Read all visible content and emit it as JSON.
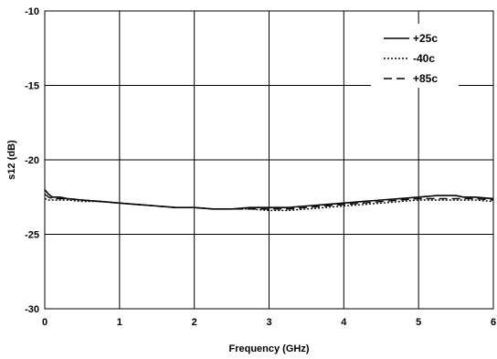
{
  "chart_data": {
    "type": "line",
    "title": "",
    "xlabel": "Frequency (GHz)",
    "ylabel": "s12 (dB)",
    "xlim": [
      0,
      6
    ],
    "ylim": [
      -30,
      -10
    ],
    "xticks": [
      0,
      1,
      2,
      3,
      4,
      5,
      6
    ],
    "yticks": [
      -30,
      -25,
      -20,
      -15,
      -10
    ],
    "grid": true,
    "legend_position": "top-right",
    "series": [
      {
        "name": "+25c",
        "style": "solid",
        "color": "#000000",
        "x": [
          0,
          0.05,
          0.1,
          0.2,
          0.3,
          0.5,
          0.75,
          1.0,
          1.25,
          1.5,
          1.75,
          2.0,
          2.25,
          2.5,
          2.75,
          3.0,
          3.25,
          3.5,
          3.75,
          4.0,
          4.25,
          4.5,
          4.75,
          5.0,
          5.25,
          5.5,
          5.6,
          5.75,
          6.0
        ],
        "y": [
          -22.0,
          -22.3,
          -22.5,
          -22.5,
          -22.6,
          -22.7,
          -22.8,
          -22.9,
          -23.0,
          -23.1,
          -23.2,
          -23.2,
          -23.3,
          -23.3,
          -23.2,
          -23.2,
          -23.2,
          -23.1,
          -23.0,
          -22.9,
          -22.8,
          -22.7,
          -22.6,
          -22.5,
          -22.4,
          -22.4,
          -22.5,
          -22.5,
          -22.6
        ]
      },
      {
        "name": "-40c",
        "style": "dotted",
        "color": "#000000",
        "x": [
          0,
          0.05,
          0.1,
          0.2,
          0.3,
          0.5,
          0.75,
          1.0,
          1.25,
          1.5,
          1.75,
          2.0,
          2.25,
          2.5,
          2.75,
          3.0,
          3.25,
          3.5,
          3.75,
          4.0,
          4.25,
          4.5,
          4.75,
          5.0,
          5.25,
          5.5,
          5.75,
          6.0
        ],
        "y": [
          -22.6,
          -22.7,
          -22.7,
          -22.7,
          -22.7,
          -22.8,
          -22.8,
          -22.9,
          -23.0,
          -23.1,
          -23.2,
          -23.2,
          -23.3,
          -23.3,
          -23.3,
          -23.4,
          -23.4,
          -23.3,
          -23.2,
          -23.1,
          -23.0,
          -22.9,
          -22.8,
          -22.7,
          -22.7,
          -22.7,
          -22.7,
          -22.8
        ]
      },
      {
        "name": "+85c",
        "style": "dashed",
        "color": "#000000",
        "x": [
          0,
          0.05,
          0.1,
          0.2,
          0.3,
          0.5,
          0.75,
          1.0,
          1.25,
          1.5,
          1.75,
          2.0,
          2.25,
          2.5,
          2.75,
          3.0,
          3.25,
          3.5,
          3.75,
          4.0,
          4.25,
          4.5,
          4.75,
          5.0,
          5.25,
          5.5,
          5.75,
          6.0
        ],
        "y": [
          -22.3,
          -22.5,
          -22.6,
          -22.6,
          -22.6,
          -22.7,
          -22.8,
          -22.9,
          -23.0,
          -23.1,
          -23.2,
          -23.2,
          -23.3,
          -23.3,
          -23.3,
          -23.3,
          -23.3,
          -23.2,
          -23.1,
          -23.0,
          -22.9,
          -22.8,
          -22.7,
          -22.6,
          -22.6,
          -22.6,
          -22.6,
          -22.7
        ]
      }
    ]
  }
}
